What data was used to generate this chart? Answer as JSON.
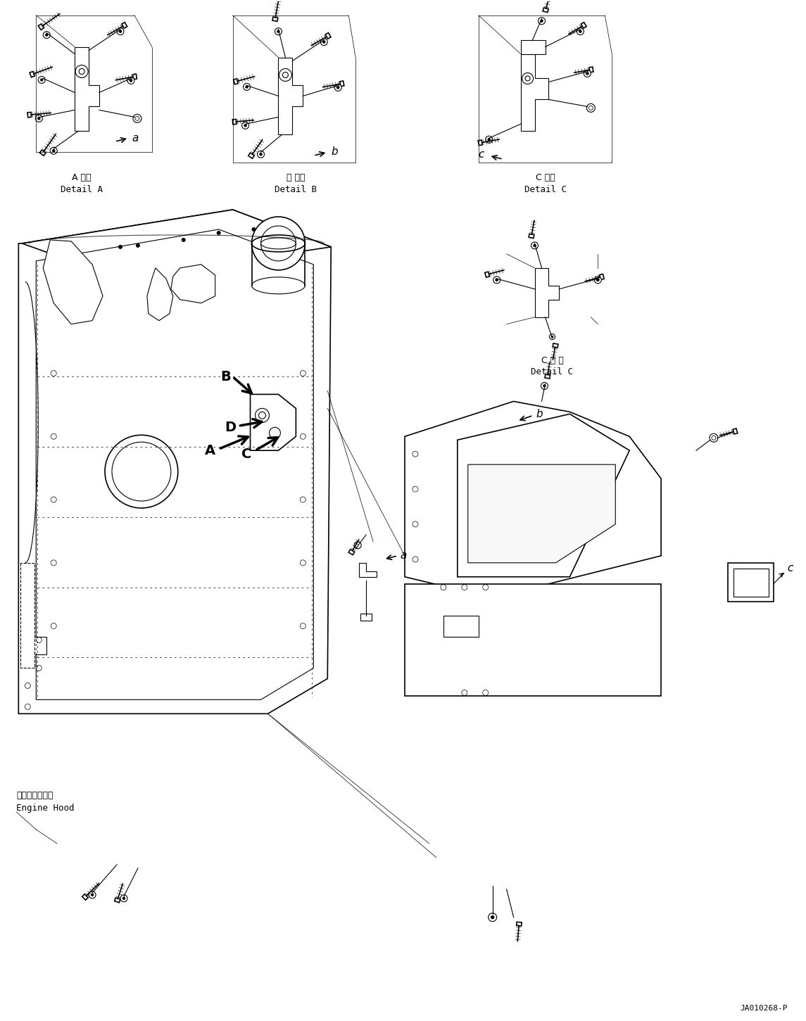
{
  "background_color": "#ffffff",
  "fig_width": 11.45,
  "fig_height": 14.51,
  "dpi": 100,
  "reference_code": "JA010268-P",
  "labels": {
    "detail_a_jp": "A 詳細",
    "detail_a_en": "Detail A",
    "detail_b_jp": "日 詳細",
    "detail_b_en": "Detail B",
    "detail_c_jp": "C 詳細",
    "detail_c_en": "Detail C",
    "detail_c2_jp": "C 詳 細",
    "detail_c2_en": "Detail C",
    "engine_hood_jp": "エンジンフード",
    "engine_hood_en": "Engine Hood"
  },
  "callout_letters": [
    "A",
    "B",
    "C",
    "D"
  ],
  "small_labels": [
    "a",
    "b",
    "c"
  ]
}
